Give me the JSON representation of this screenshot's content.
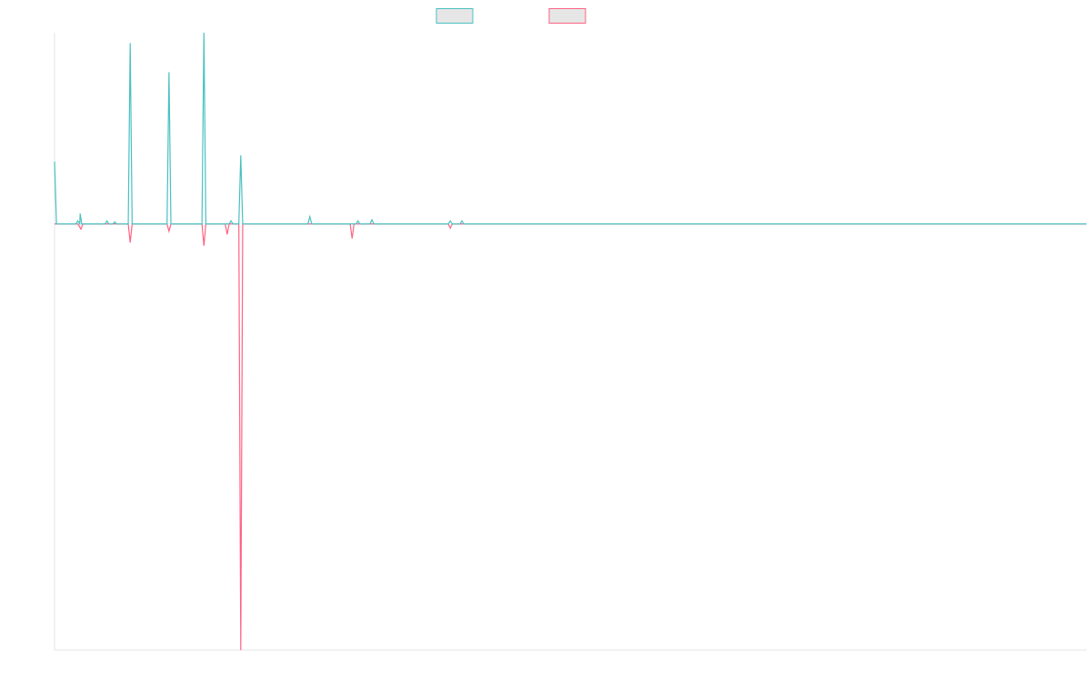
{
  "colors": {
    "series_a": "#4bc0c0",
    "series_b": "#ff6384",
    "legend_fill": "#e6e6e6",
    "axis": "#e6e6e6"
  },
  "chart_data": {
    "type": "line",
    "title": "",
    "xlabel": "",
    "ylabel": "",
    "grid": false,
    "legend_position": "top",
    "x_range": [
      0,
      266
    ],
    "ylim": [
      -205,
      92
    ],
    "series": [
      {
        "color": "#4bc0c0",
        "points": [
          [
            0,
            30
          ],
          [
            0.5,
            0
          ],
          [
            5.5,
            0
          ],
          [
            6,
            1.5
          ],
          [
            6.5,
            0
          ],
          [
            6.6,
            5
          ],
          [
            7,
            0
          ],
          [
            13,
            0
          ],
          [
            13.5,
            1.5
          ],
          [
            14,
            0
          ],
          [
            15,
            0
          ],
          [
            15.5,
            1
          ],
          [
            16,
            0
          ],
          [
            19,
            0
          ],
          [
            19.5,
            87
          ],
          [
            20,
            0
          ],
          [
            29,
            0
          ],
          [
            29.5,
            73
          ],
          [
            30,
            0
          ],
          [
            38,
            0
          ],
          [
            38.5,
            92
          ],
          [
            39,
            0
          ],
          [
            45,
            0
          ],
          [
            45.5,
            1.5
          ],
          [
            46,
            0
          ],
          [
            47.5,
            0
          ],
          [
            48,
            33
          ],
          [
            48.5,
            0
          ],
          [
            65.3,
            0
          ],
          [
            65.8,
            3.5
          ],
          [
            66.3,
            0
          ],
          [
            77.7,
            0
          ],
          [
            78.2,
            1.5
          ],
          [
            78.7,
            0
          ],
          [
            81.3,
            0
          ],
          [
            81.8,
            2
          ],
          [
            82.3,
            0
          ],
          [
            101.5,
            0
          ],
          [
            102,
            1.5
          ],
          [
            102.5,
            0
          ],
          [
            104.5,
            0
          ],
          [
            105,
            1.5
          ],
          [
            105.5,
            0
          ],
          [
            266,
            0
          ]
        ]
      },
      {
        "color": "#ff6384",
        "points": [
          [
            0,
            0
          ],
          [
            6,
            0
          ],
          [
            6.8,
            -2.5
          ],
          [
            7.3,
            0
          ],
          [
            19,
            0
          ],
          [
            19.5,
            -9
          ],
          [
            20,
            0
          ],
          [
            29,
            0
          ],
          [
            29.5,
            -3.5
          ],
          [
            30,
            0
          ],
          [
            38,
            0
          ],
          [
            38.5,
            -10.5
          ],
          [
            39,
            0
          ],
          [
            44,
            0
          ],
          [
            44.5,
            -5
          ],
          [
            45,
            0
          ],
          [
            47.5,
            0
          ],
          [
            48,
            -205
          ],
          [
            48.5,
            0
          ],
          [
            76.2,
            0
          ],
          [
            76.7,
            -7
          ],
          [
            77.2,
            0
          ],
          [
            101.5,
            0
          ],
          [
            102,
            -2
          ],
          [
            102.5,
            0
          ],
          [
            266,
            0
          ]
        ]
      }
    ]
  }
}
